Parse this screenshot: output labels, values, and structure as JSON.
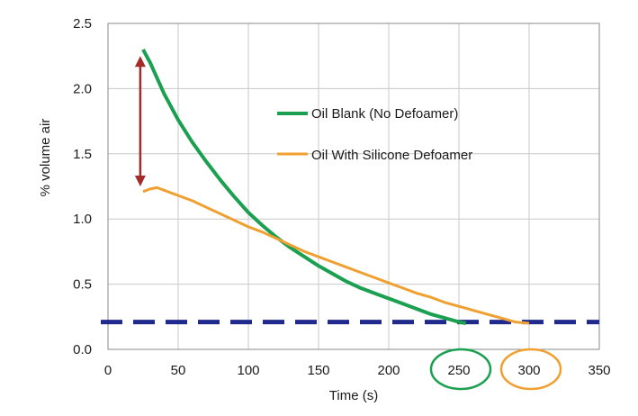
{
  "chart_data": {
    "type": "line",
    "title": "",
    "xlabel": "Time (s)",
    "ylabel": "% volume air",
    "xlim": [
      0,
      350
    ],
    "ylim": [
      0,
      2.5
    ],
    "x_ticks": [
      0,
      50,
      100,
      150,
      200,
      250,
      300,
      350
    ],
    "y_ticks": [
      0.0,
      0.5,
      1.0,
      1.5,
      2.0,
      2.5
    ],
    "x_tick_labels": [
      "0",
      "50",
      "100",
      "150",
      "200",
      "250",
      "300",
      "350"
    ],
    "y_tick_labels": [
      "0.0",
      "0.5",
      "1.0",
      "1.5",
      "2.0",
      "2.5"
    ],
    "grid": true,
    "legend_position": "inside-right",
    "series": [
      {
        "name": "Oil Blank (No Defoamer)",
        "color": "#1aa050",
        "x": [
          25,
          30,
          35,
          40,
          45,
          50,
          60,
          70,
          80,
          90,
          100,
          110,
          120,
          130,
          140,
          150,
          160,
          170,
          180,
          190,
          200,
          210,
          220,
          230,
          240,
          250,
          255
        ],
        "y": [
          2.3,
          2.2,
          2.08,
          1.96,
          1.86,
          1.76,
          1.59,
          1.44,
          1.3,
          1.17,
          1.05,
          0.95,
          0.86,
          0.78,
          0.71,
          0.64,
          0.58,
          0.52,
          0.47,
          0.43,
          0.39,
          0.35,
          0.31,
          0.27,
          0.24,
          0.21,
          0.2
        ]
      },
      {
        "name": "Oil With Silicone Defoamer",
        "color": "#f0a030",
        "x": [
          25,
          30,
          35,
          40,
          50,
          60,
          70,
          80,
          90,
          100,
          110,
          120,
          130,
          140,
          150,
          160,
          170,
          180,
          190,
          200,
          210,
          220,
          230,
          240,
          250,
          260,
          270,
          280,
          290,
          300
        ],
        "y": [
          1.21,
          1.23,
          1.24,
          1.22,
          1.18,
          1.14,
          1.09,
          1.04,
          0.99,
          0.94,
          0.9,
          0.85,
          0.8,
          0.75,
          0.71,
          0.67,
          0.63,
          0.59,
          0.55,
          0.51,
          0.47,
          0.43,
          0.4,
          0.36,
          0.33,
          0.3,
          0.27,
          0.24,
          0.21,
          0.2
        ]
      }
    ],
    "reference_line": {
      "y": 0.21,
      "style": "dashed",
      "color": "#1f2a8c"
    },
    "annotations": [
      {
        "type": "double-arrow",
        "x": 23,
        "y_from": 1.25,
        "y_to": 2.25,
        "color": "#a52a2a"
      },
      {
        "type": "ellipse-highlight",
        "x_value": 250,
        "color": "#1aa050"
      },
      {
        "type": "ellipse-highlight",
        "x_value": 300,
        "color": "#f0a030"
      }
    ]
  }
}
